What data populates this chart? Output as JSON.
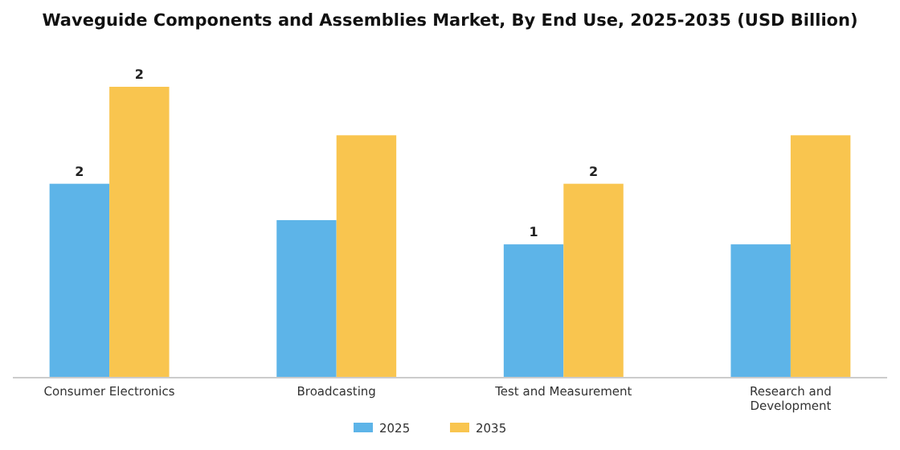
{
  "chart_data": {
    "type": "bar",
    "title": "Waveguide Components and Assemblies Market, By End Use, 2025-2035 (USD Billion)",
    "categories": [
      "Consumer Electronics",
      "Broadcasting",
      "Test and Measurement",
      "Research and Development"
    ],
    "series": [
      {
        "name": "2025",
        "color": "#5db4e8",
        "values": [
          1.6,
          1.3,
          1.1,
          1.1
        ],
        "value_labels": [
          "2",
          null,
          "1",
          null
        ]
      },
      {
        "name": "2035",
        "color": "#f9c54f",
        "values": [
          2.4,
          2.0,
          1.6,
          2.0
        ],
        "value_labels": [
          "2",
          null,
          "2",
          null
        ]
      }
    ],
    "legend": "bottom"
  }
}
